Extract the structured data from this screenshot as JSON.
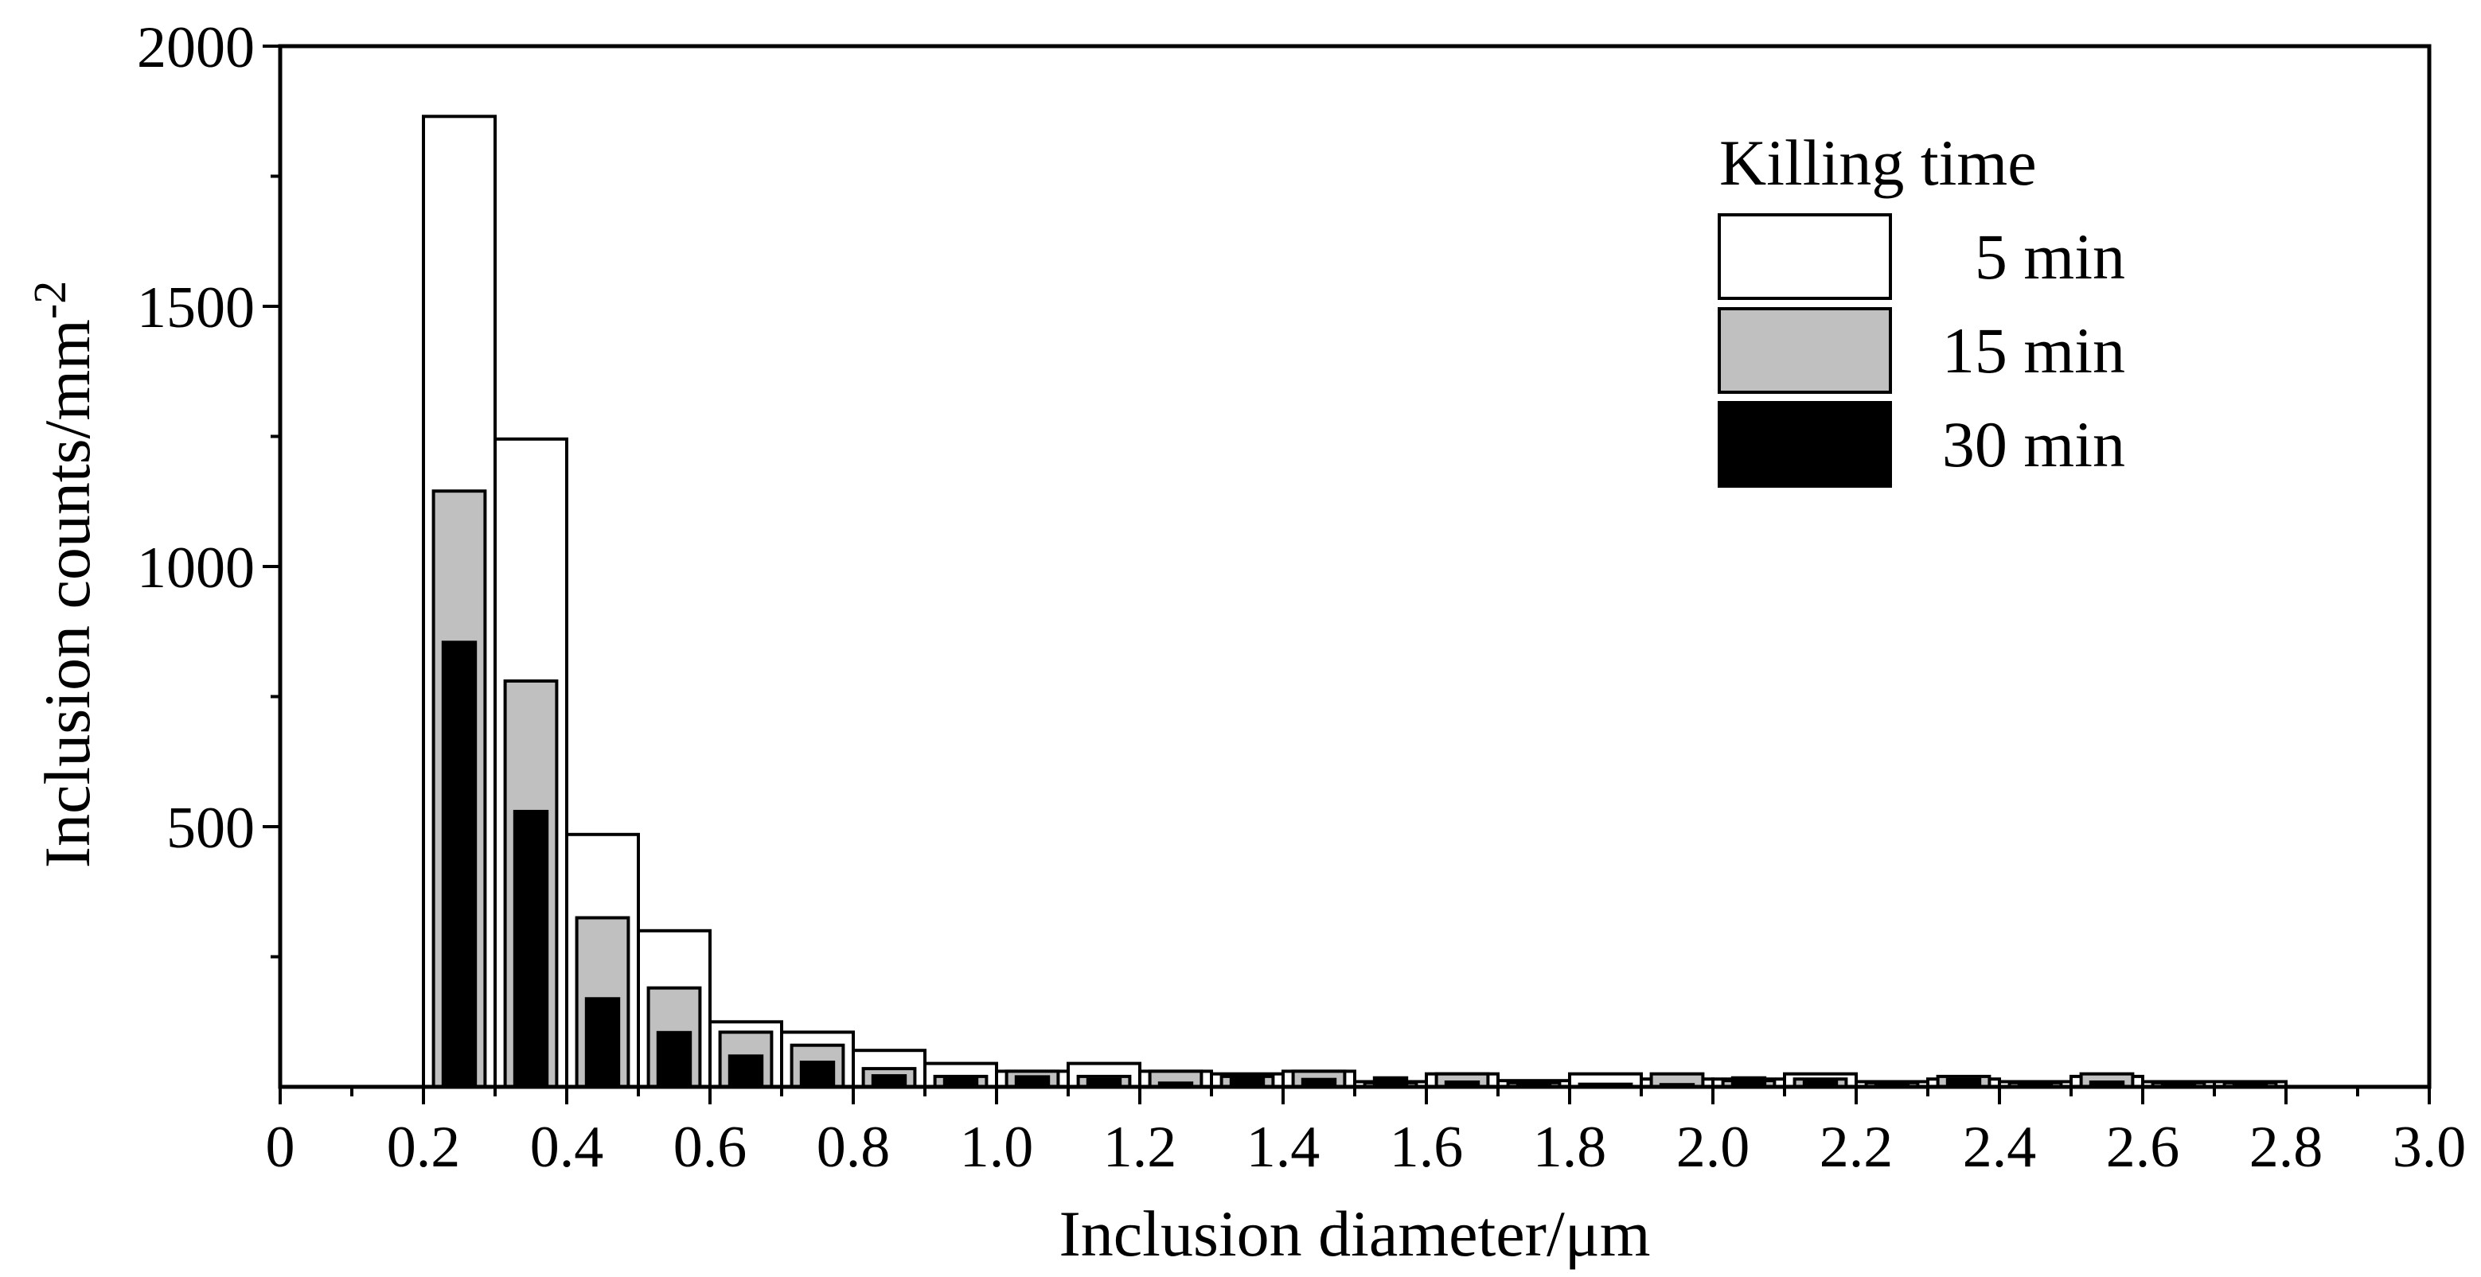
{
  "chart_data": {
    "type": "bar",
    "xlabel": "Inclusion diameter/μm",
    "ylabel_main": "Inclusion counts/mm",
    "ylabel_sup": "-2",
    "xlim": [
      0,
      3.0
    ],
    "ylim": [
      0,
      2000
    ],
    "x_ticks": [
      "0",
      "0.2",
      "0.4",
      "0.6",
      "0.8",
      "1.0",
      "1.2",
      "1.4",
      "1.6",
      "1.8",
      "2.0",
      "2.2",
      "2.4",
      "2.6",
      "2.8",
      "3.0"
    ],
    "y_ticks": [
      "500",
      "1000",
      "1500",
      "2000"
    ],
    "legend": {
      "title": "Killing time",
      "position": "top-right"
    },
    "bin_width": 0.1,
    "bin_starts": [
      0.2,
      0.3,
      0.4,
      0.5,
      0.6,
      0.7,
      0.8,
      0.9,
      1.0,
      1.1,
      1.2,
      1.3,
      1.4,
      1.5,
      1.6,
      1.7,
      1.8,
      1.9,
      2.0,
      2.1,
      2.2,
      2.3,
      2.4,
      2.5,
      2.6,
      2.7
    ],
    "series": [
      {
        "name": "5 min",
        "color": "#ffffff",
        "values": [
          1865,
          1245,
          485,
          300,
          125,
          105,
          70,
          45,
          30,
          45,
          30,
          25,
          30,
          10,
          25,
          12,
          25,
          15,
          15,
          25,
          10,
          15,
          10,
          20,
          10,
          10
        ]
      },
      {
        "name": "15 min",
        "color": "#c0c0c0",
        "values": [
          1145,
          780,
          325,
          190,
          105,
          80,
          35,
          20,
          30,
          20,
          30,
          20,
          30,
          8,
          25,
          8,
          5,
          25,
          12,
          15,
          8,
          20,
          8,
          25,
          8,
          8
        ]
      },
      {
        "name": "30 min",
        "color": "#000000",
        "values": [
          855,
          530,
          170,
          105,
          60,
          48,
          22,
          18,
          20,
          15,
          8,
          18,
          15,
          18,
          10,
          8,
          5,
          5,
          18,
          10,
          6,
          15,
          8,
          10,
          8,
          6
        ]
      }
    ]
  }
}
